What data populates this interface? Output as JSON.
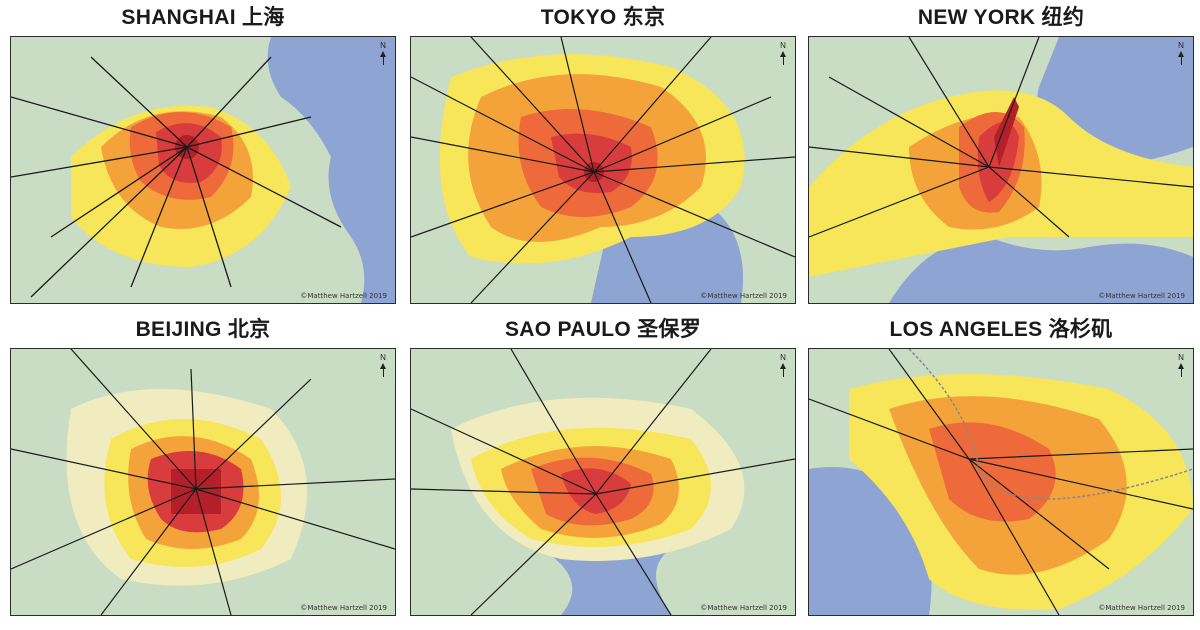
{
  "panels": [
    {
      "key": "shanghai",
      "title": "SHANGHAI 上海",
      "credit": "©Matthew Hartzell 2019"
    },
    {
      "key": "tokyo",
      "title": "TOKYO 东京",
      "credit": "©Matthew Hartzell 2019"
    },
    {
      "key": "newyork",
      "title": "NEW YORK 纽约",
      "credit": "©Matthew Hartzell 2019"
    },
    {
      "key": "beijing",
      "title": "BEIJING 北京",
      "credit": "©Matthew Hartzell 2019"
    },
    {
      "key": "saopaulo",
      "title": "SAO PAULO 圣保罗",
      "credit": "©Matthew Hartzell 2019"
    },
    {
      "key": "losangeles",
      "title": "LOS ANGELES 洛杉矶",
      "credit": "©Matthew Hartzell 2019"
    }
  ],
  "north_label": "N",
  "colors": {
    "land": "#c9dcc4",
    "water": "#8ea4d2",
    "sparse": "#f1ecc0",
    "low": "#f7e55a",
    "medium": "#f4a33a",
    "high": "#ee6a3a",
    "dense": "#d93c3c",
    "core": "#b3202a",
    "rail": "#1a1a1a"
  }
}
